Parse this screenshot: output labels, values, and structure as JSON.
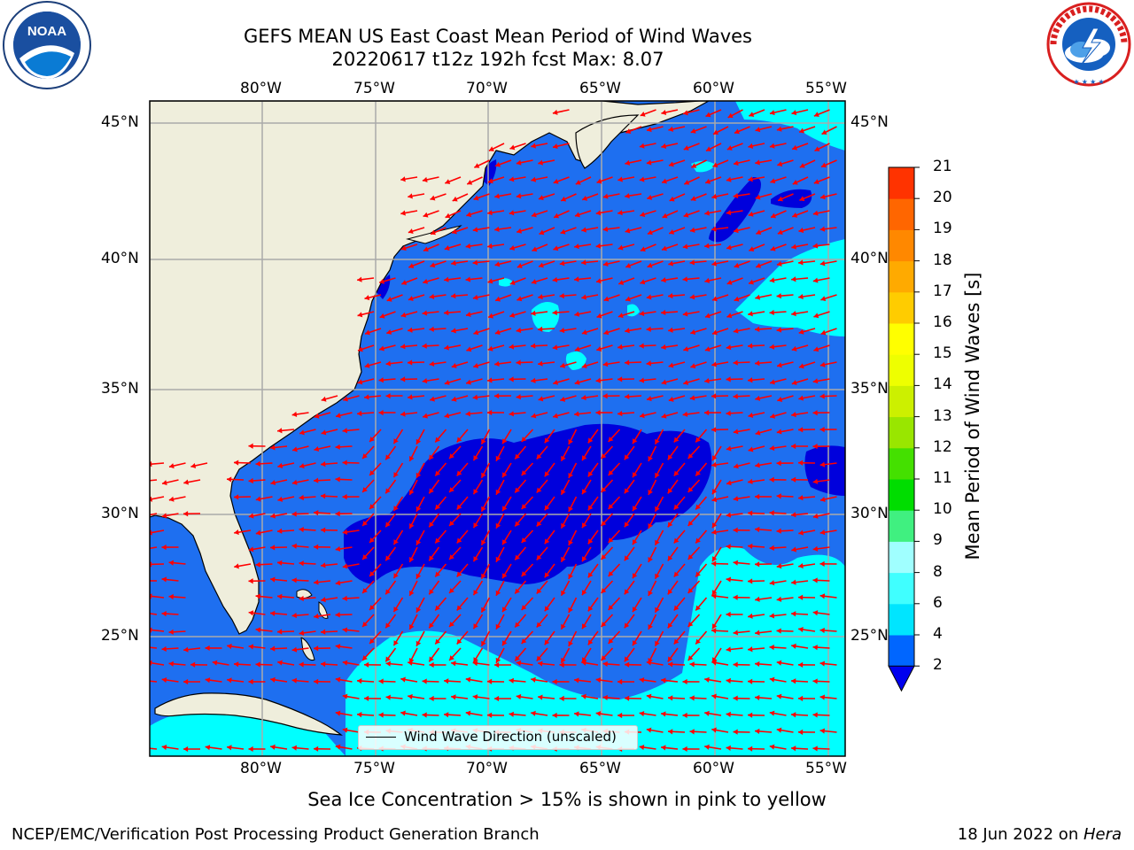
{
  "header": {
    "title_line1": "GEFS MEAN US East Coast Mean Period of Wind Waves",
    "title_line2": "20220617 t12z 192h fcst    Max: 8.07"
  },
  "logos": {
    "left": {
      "name": "noaa-logo",
      "text": "NOAA",
      "ring_text": "NATIONAL OCEANIC AND ATMOSPHERIC ADMINISTRATION · U.S. DEPARTMENT OF COMMERCE"
    },
    "right": {
      "name": "nws-logo",
      "ring_text": "NATIONAL WEATHER SERVICE"
    }
  },
  "map": {
    "lon_ticks": [
      "80°W",
      "75°W",
      "70°W",
      "65°W",
      "60°W",
      "55°W"
    ],
    "lat_ticks": [
      "45°N",
      "40°N",
      "35°N",
      "30°N",
      "25°N"
    ],
    "legend_label": "Wind Wave Direction (unscaled)",
    "colors": {
      "land": "#efeedc",
      "sea_2_4": "#1e6ff0",
      "sea_below_2": "#0000dc",
      "sea_4_6": "#00ffff",
      "arrow": "#ff0000",
      "grid": "#aaaaaa"
    }
  },
  "colorbar": {
    "label": "Mean Period of Wind Waves [s]",
    "levels": [
      "2",
      "4",
      "6",
      "8",
      "9",
      "10",
      "11",
      "12",
      "13",
      "14",
      "15",
      "16",
      "17",
      "18",
      "19",
      "20",
      "21"
    ],
    "colors": [
      "#0066ff",
      "#00e5ff",
      "#40ffff",
      "#a0ffff",
      "#40f080",
      "#00dd00",
      "#44e000",
      "#99e600",
      "#ccf000",
      "#eeff00",
      "#ffff00",
      "#ffcc00",
      "#ffaa00",
      "#ff8800",
      "#ff6600",
      "#ff3300",
      "#ff0000"
    ],
    "under_color": "#0000ee"
  },
  "subtitle": "Sea Ice Concentration > 15% is shown in pink to yellow",
  "footer": {
    "left": "NCEP/EMC/Verification Post Processing Product Generation Branch",
    "right_date": "18 Jun 2022 on ",
    "right_host": "Hera"
  }
}
